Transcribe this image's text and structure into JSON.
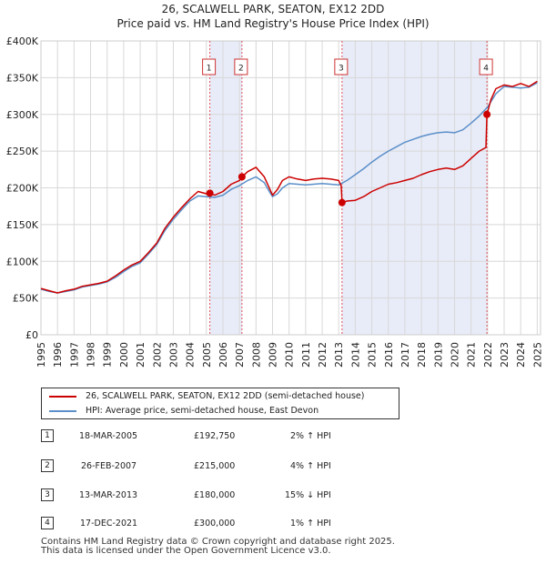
{
  "chart_data": {
    "type": "line",
    "title": "26, SCALWELL PARK, SEATON, EX12 2DD",
    "subtitle": "Price paid vs. HM Land Registry's House Price Index (HPI)",
    "xlabel": "",
    "ylabel": "",
    "xlim": [
      1995,
      2025.2
    ],
    "ylim": [
      0,
      400000
    ],
    "x_ticks": [
      "1995",
      "1996",
      "1997",
      "1998",
      "1999",
      "2000",
      "2001",
      "2002",
      "2003",
      "2004",
      "2005",
      "2006",
      "2007",
      "2008",
      "2009",
      "2010",
      "2011",
      "2012",
      "2013",
      "2014",
      "2015",
      "2016",
      "2017",
      "2018",
      "2019",
      "2020",
      "2021",
      "2022",
      "2023",
      "2024",
      "2025"
    ],
    "y_ticks": [
      {
        "value": 0,
        "label": "£0"
      },
      {
        "value": 50000,
        "label": "£50K"
      },
      {
        "value": 100000,
        "label": "£100K"
      },
      {
        "value": 150000,
        "label": "£150K"
      },
      {
        "value": 200000,
        "label": "£200K"
      },
      {
        "value": 250000,
        "label": "£250K"
      },
      {
        "value": 300000,
        "label": "£300K"
      },
      {
        "value": 350000,
        "label": "£350K"
      },
      {
        "value": 400000,
        "label": "£400K"
      }
    ],
    "grid": true,
    "shaded_periods": [
      [
        2005.21,
        2007.15
      ],
      [
        2013.2,
        2021.96
      ]
    ],
    "colors": {
      "property": "#cc0000",
      "hpi": "#5b8fc9",
      "marker_line": "#e0505a",
      "shade": "#e8ecf8",
      "grid": "#d8d8d8"
    },
    "series": [
      {
        "name": "26, SCALWELL PARK, SEATON, EX12 2DD (semi-detached house)",
        "color": "#cc0000",
        "x": [
          1995.0,
          1995.5,
          1996.0,
          1996.5,
          1997.0,
          1997.5,
          1998.0,
          1998.5,
          1999.0,
          1999.5,
          2000.0,
          2000.5,
          2001.0,
          2001.5,
          2002.0,
          2002.5,
          2003.0,
          2003.5,
          2004.0,
          2004.5,
          2005.0,
          2005.21,
          2005.5,
          2006.0,
          2006.5,
          2007.0,
          2007.15,
          2007.5,
          2008.0,
          2008.5,
          2008.8,
          2009.0,
          2009.3,
          2009.6,
          2010.0,
          2010.5,
          2011.0,
          2011.5,
          2012.0,
          2012.5,
          2013.0,
          2013.15,
          2013.2,
          2013.5,
          2014.0,
          2014.5,
          2015.0,
          2015.5,
          2016.0,
          2016.5,
          2017.0,
          2017.5,
          2018.0,
          2018.5,
          2019.0,
          2019.5,
          2020.0,
          2020.5,
          2021.0,
          2021.5,
          2021.9,
          2021.96,
          2022.2,
          2022.5,
          2023.0,
          2023.5,
          2024.0,
          2024.5,
          2025.0
        ],
        "values": [
          63000,
          60000,
          57000,
          60000,
          62000,
          66000,
          68000,
          70000,
          73000,
          80000,
          88000,
          95000,
          100000,
          112000,
          125000,
          145000,
          160000,
          173000,
          185000,
          195000,
          192000,
          192750,
          190000,
          195000,
          205000,
          210000,
          215000,
          222000,
          228000,
          215000,
          200000,
          190000,
          198000,
          210000,
          215000,
          212000,
          210000,
          212000,
          213000,
          212000,
          210000,
          203000,
          180000,
          182000,
          183000,
          188000,
          195000,
          200000,
          205000,
          207000,
          210000,
          213000,
          218000,
          222000,
          225000,
          227000,
          225000,
          230000,
          240000,
          250000,
          255000,
          300000,
          320000,
          335000,
          340000,
          338000,
          342000,
          338000,
          345000
        ]
      },
      {
        "name": "HPI: Average price, semi-detached house, East Devon",
        "color": "#5b8fc9",
        "x": [
          1995.0,
          1995.5,
          1996.0,
          1996.5,
          1997.0,
          1997.5,
          1998.0,
          1998.5,
          1999.0,
          1999.5,
          2000.0,
          2000.5,
          2001.0,
          2001.5,
          2002.0,
          2002.5,
          2003.0,
          2003.5,
          2004.0,
          2004.5,
          2005.0,
          2005.5,
          2006.0,
          2006.5,
          2007.0,
          2007.5,
          2008.0,
          2008.5,
          2008.8,
          2009.0,
          2009.3,
          2009.6,
          2010.0,
          2010.5,
          2011.0,
          2011.5,
          2012.0,
          2012.5,
          2013.0,
          2013.5,
          2014.0,
          2014.5,
          2015.0,
          2015.5,
          2016.0,
          2016.5,
          2017.0,
          2017.5,
          2018.0,
          2018.5,
          2019.0,
          2019.5,
          2020.0,
          2020.5,
          2021.0,
          2021.5,
          2022.0,
          2022.5,
          2023.0,
          2023.5,
          2024.0,
          2024.5,
          2025.0
        ],
        "values": [
          62000,
          59000,
          57000,
          59000,
          61000,
          65000,
          67000,
          69000,
          72000,
          78000,
          86000,
          93000,
          98000,
          110000,
          123000,
          142000,
          157000,
          170000,
          182000,
          189000,
          188000,
          187000,
          190000,
          198000,
          203000,
          210000,
          215000,
          207000,
          195000,
          188000,
          192000,
          200000,
          206000,
          205000,
          204000,
          205000,
          206000,
          205000,
          204000,
          210000,
          218000,
          226000,
          235000,
          243000,
          250000,
          256000,
          262000,
          266000,
          270000,
          273000,
          275000,
          276000,
          275000,
          279000,
          288000,
          298000,
          310000,
          328000,
          338000,
          337000,
          336000,
          337000,
          343000
        ]
      }
    ],
    "sale_markers": [
      {
        "label": "1",
        "x": 2005.21,
        "value": 192750
      },
      {
        "label": "2",
        "x": 2007.15,
        "value": 215000
      },
      {
        "label": "3",
        "x": 2013.2,
        "value": 180000
      },
      {
        "label": "4",
        "x": 2021.96,
        "value": 300000
      }
    ]
  },
  "legend": {
    "items": [
      {
        "label": "26, SCALWELL PARK, SEATON, EX12 2DD (semi-detached house)",
        "color": "#cc0000"
      },
      {
        "label": "HPI: Average price, semi-detached house, East Devon",
        "color": "#5b8fc9"
      }
    ]
  },
  "sales": [
    {
      "num": "1",
      "date": "18-MAR-2005",
      "price": "£192,750",
      "hpi": "2% ↑ HPI"
    },
    {
      "num": "2",
      "date": "26-FEB-2007",
      "price": "£215,000",
      "hpi": "4% ↑ HPI"
    },
    {
      "num": "3",
      "date": "13-MAR-2013",
      "price": "£180,000",
      "hpi": "15% ↓ HPI"
    },
    {
      "num": "4",
      "date": "17-DEC-2021",
      "price": "£300,000",
      "hpi": "1% ↑ HPI"
    }
  ],
  "footer": {
    "line1": "Contains HM Land Registry data © Crown copyright and database right 2025.",
    "line2": "This data is licensed under the Open Government Licence v3.0."
  }
}
